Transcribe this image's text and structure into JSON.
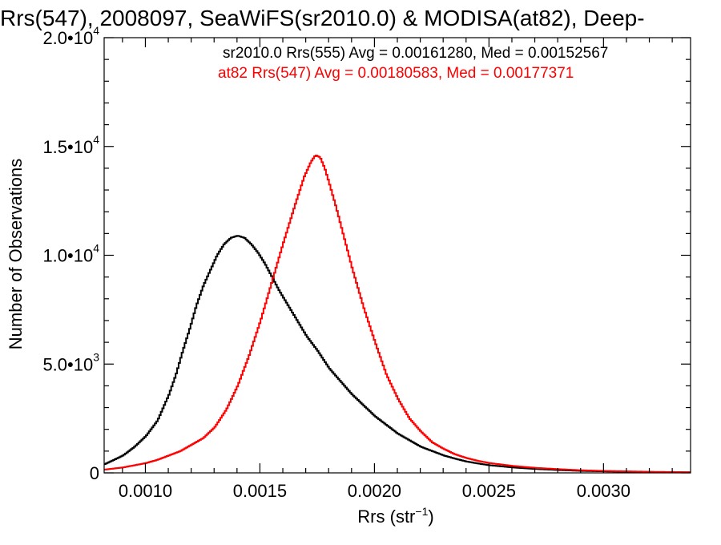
{
  "colors": {
    "sr2010": "#000000",
    "at82": "#ff0000",
    "axis": "#000000",
    "background": "#ffffff"
  },
  "chart_data": {
    "type": "line",
    "title": "Rrs(547), 2008097, SeaWiFS(sr2010.0) & MODISA(at82), Deep-",
    "xlabel": "Rrs (str",
    "xlabel_sup": "−1",
    "xlabel_tail": ")",
    "ylabel": "Number of Observations",
    "xlim": [
      0.00082,
      0.00338
    ],
    "ylim": [
      0,
      20000
    ],
    "grid": false,
    "legend_position": "top-right",
    "x_ticks": [
      {
        "value": 0.001,
        "label": "0.0010"
      },
      {
        "value": 0.0015,
        "label": "0.0015"
      },
      {
        "value": 0.002,
        "label": "0.0020"
      },
      {
        "value": 0.0025,
        "label": "0.0025"
      },
      {
        "value": 0.003,
        "label": "0.0030"
      }
    ],
    "y_ticks": [
      {
        "value": 0,
        "base": "0",
        "exp": ""
      },
      {
        "value": 5000,
        "base": "5.0•10",
        "exp": "3"
      },
      {
        "value": 10000,
        "base": "1.0•10",
        "exp": "4"
      },
      {
        "value": 15000,
        "base": "1.5•10",
        "exp": "4"
      },
      {
        "value": 20000,
        "base": "2.0•10",
        "exp": "4"
      }
    ],
    "legend": [
      {
        "text": "sr2010.0 Rrs(555) Avg = 0.00161280, Med = 0.00152567",
        "color": "#000000"
      },
      {
        "text": "at82 Rrs(547) Avg = 0.00180583, Med = 0.00177371",
        "color": "#ff0000"
      }
    ],
    "series": [
      {
        "name": "sr2010.0 Rrs(555)",
        "color": "#000000",
        "points": [
          [
            0.00082,
            400
          ],
          [
            0.0009,
            800
          ],
          [
            0.00095,
            1200
          ],
          [
            0.001,
            1700
          ],
          [
            0.00105,
            2400
          ],
          [
            0.0011,
            3600
          ],
          [
            0.00113,
            4500
          ],
          [
            0.00116,
            5600
          ],
          [
            0.00119,
            6600
          ],
          [
            0.00122,
            7700
          ],
          [
            0.00125,
            8600
          ],
          [
            0.00128,
            9300
          ],
          [
            0.00131,
            10000
          ],
          [
            0.00134,
            10500
          ],
          [
            0.00137,
            10800
          ],
          [
            0.0014,
            10900
          ],
          [
            0.00143,
            10800
          ],
          [
            0.00146,
            10500
          ],
          [
            0.00149,
            10100
          ],
          [
            0.00152,
            9600
          ],
          [
            0.00155,
            9000
          ],
          [
            0.00158,
            8400
          ],
          [
            0.00162,
            7700
          ],
          [
            0.00166,
            7000
          ],
          [
            0.0017,
            6300
          ],
          [
            0.00175,
            5600
          ],
          [
            0.0018,
            4800
          ],
          [
            0.00185,
            4200
          ],
          [
            0.0019,
            3600
          ],
          [
            0.00195,
            3100
          ],
          [
            0.002,
            2600
          ],
          [
            0.00205,
            2200
          ],
          [
            0.0021,
            1800
          ],
          [
            0.00215,
            1500
          ],
          [
            0.0022,
            1200
          ],
          [
            0.00225,
            1000
          ],
          [
            0.0023,
            800
          ],
          [
            0.00235,
            650
          ],
          [
            0.0024,
            520
          ],
          [
            0.00245,
            430
          ],
          [
            0.0025,
            350
          ],
          [
            0.0026,
            250
          ],
          [
            0.0027,
            180
          ],
          [
            0.0028,
            130
          ],
          [
            0.0029,
            90
          ],
          [
            0.003,
            70
          ],
          [
            0.0031,
            50
          ],
          [
            0.0032,
            40
          ],
          [
            0.0033,
            30
          ],
          [
            0.00338,
            25
          ]
        ]
      },
      {
        "name": "at82 Rrs(547)",
        "color": "#ff0000",
        "points": [
          [
            0.00082,
            150
          ],
          [
            0.0009,
            250
          ],
          [
            0.00095,
            350
          ],
          [
            0.001,
            450
          ],
          [
            0.00105,
            600
          ],
          [
            0.0011,
            800
          ],
          [
            0.00115,
            1000
          ],
          [
            0.0012,
            1300
          ],
          [
            0.00125,
            1600
          ],
          [
            0.0013,
            2100
          ],
          [
            0.00135,
            2900
          ],
          [
            0.0014,
            4000
          ],
          [
            0.00145,
            5400
          ],
          [
            0.0015,
            7000
          ],
          [
            0.00155,
            8800
          ],
          [
            0.0016,
            10600
          ],
          [
            0.00165,
            12300
          ],
          [
            0.00169,
            13600
          ],
          [
            0.00172,
            14300
          ],
          [
            0.00174,
            14600
          ],
          [
            0.00176,
            14500
          ],
          [
            0.00178,
            14000
          ],
          [
            0.0018,
            13300
          ],
          [
            0.00183,
            12200
          ],
          [
            0.00186,
            11000
          ],
          [
            0.0019,
            9400
          ],
          [
            0.00195,
            7600
          ],
          [
            0.002,
            6000
          ],
          [
            0.00205,
            4500
          ],
          [
            0.0021,
            3400
          ],
          [
            0.00215,
            2500
          ],
          [
            0.0022,
            1900
          ],
          [
            0.00225,
            1400
          ],
          [
            0.0023,
            1100
          ],
          [
            0.00235,
            850
          ],
          [
            0.0024,
            680
          ],
          [
            0.00245,
            550
          ],
          [
            0.0025,
            450
          ],
          [
            0.0026,
            320
          ],
          [
            0.0027,
            230
          ],
          [
            0.0028,
            170
          ],
          [
            0.0029,
            120
          ],
          [
            0.003,
            90
          ],
          [
            0.0031,
            70
          ],
          [
            0.0032,
            50
          ],
          [
            0.0033,
            40
          ],
          [
            0.00338,
            30
          ]
        ]
      }
    ]
  }
}
